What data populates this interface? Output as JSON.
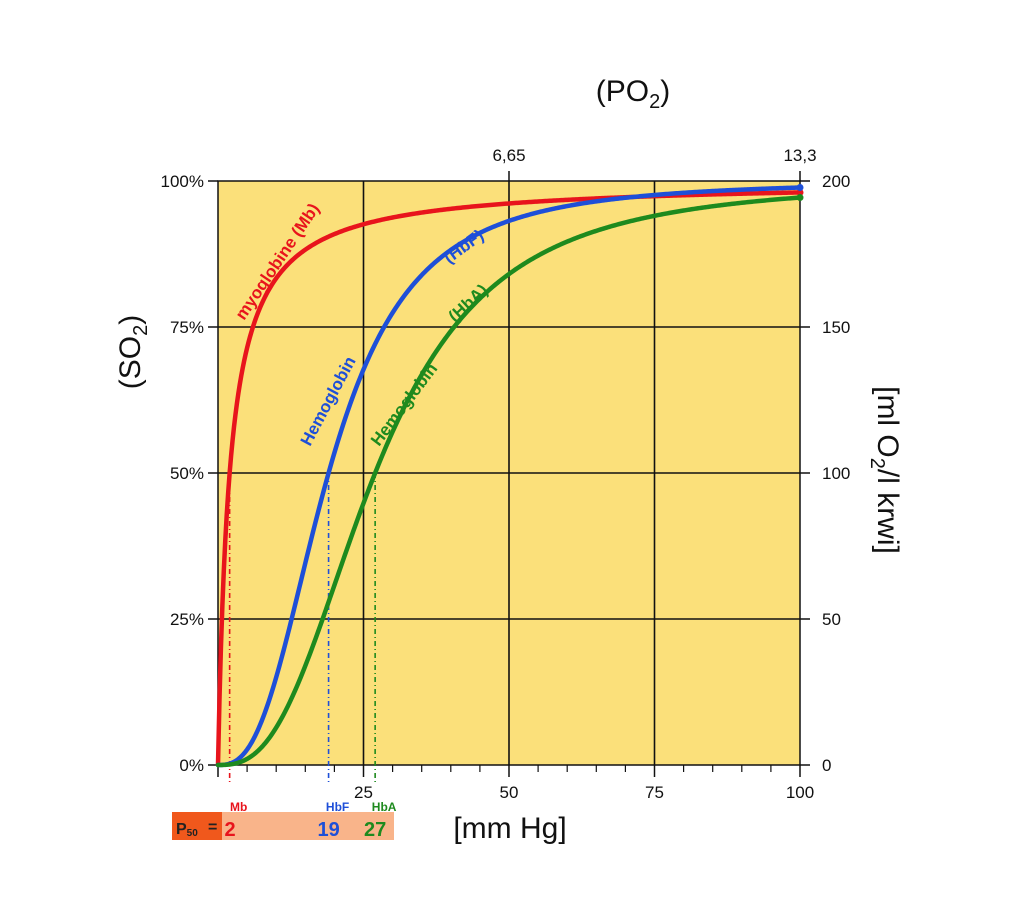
{
  "chart_data": {
    "type": "line",
    "top_title": "(PO2)",
    "x_unit_label": "[mm Hg]",
    "y_left_label": "(SO2)",
    "y_right_label": "[ml O2/l krwi]",
    "xlim": [
      0,
      100
    ],
    "ylim": [
      0,
      100
    ],
    "grid": true,
    "x_ticks": [
      0,
      5,
      10,
      15,
      20,
      25,
      30,
      35,
      40,
      45,
      50,
      55,
      60,
      65,
      70,
      75,
      80,
      85,
      90,
      95,
      100
    ],
    "x_tick_labels": [
      {
        "x": 25,
        "label": "25"
      },
      {
        "x": 50,
        "label": "50"
      },
      {
        "x": 75,
        "label": "75"
      },
      {
        "x": 100,
        "label": "100"
      }
    ],
    "x_top_tick_labels": [
      {
        "x": 50,
        "label": "6,65"
      },
      {
        "x": 100,
        "label": "13,3"
      }
    ],
    "y_left_tick_labels": [
      {
        "y": 0,
        "label": "0%"
      },
      {
        "y": 25,
        "label": "25%"
      },
      {
        "y": 50,
        "label": "50%"
      },
      {
        "y": 75,
        "label": "75%"
      },
      {
        "y": 100,
        "label": "100%"
      }
    ],
    "y_right_tick_labels": [
      {
        "y": 0,
        "label": "0"
      },
      {
        "y": 25,
        "label": "50"
      },
      {
        "y": 50,
        "label": "100"
      },
      {
        "y": 75,
        "label": "150"
      },
      {
        "y": 100,
        "label": "200"
      }
    ],
    "series": [
      {
        "key": "mb",
        "color": "#e8141c",
        "p50": 2,
        "hill_n": 1,
        "label": "myoglobine (Mb)",
        "p50_label": "Mb"
      },
      {
        "key": "hbf",
        "color": "#1e4fd8",
        "p50": 19,
        "hill_n": 2.7,
        "label_main": "Hemoglobin",
        "label_sub": "(HbF)",
        "p50_label": "HbF"
      },
      {
        "key": "hba",
        "color": "#1e8a1e",
        "p50": 27,
        "hill_n": 2.7,
        "label_main": "Hemoglobin",
        "label_sub": "(HbA)",
        "p50_label": "HbA"
      }
    ],
    "p50_box": {
      "label": "P50",
      "equals": "=",
      "values": [
        "2",
        "19",
        "27"
      ]
    },
    "colors": {
      "plot_background": "#fbe07a",
      "grid": "#111111",
      "p50_box_bg": "#f9b48a",
      "p50_label_bg": "#f0581c"
    }
  }
}
